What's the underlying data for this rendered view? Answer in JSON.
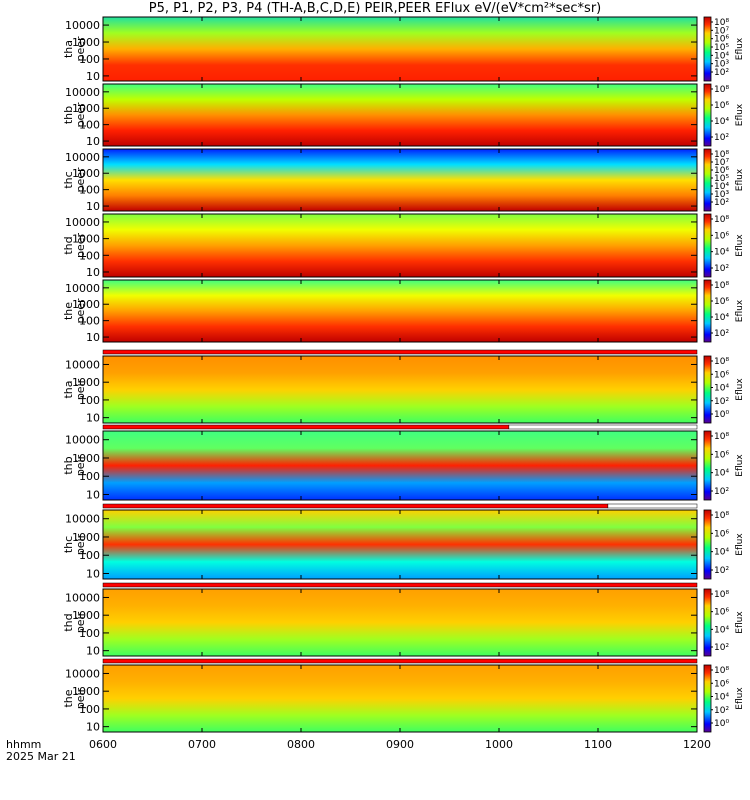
{
  "title": "P5, P1, P2, P3, P4 (TH-A,B,C,D,E) PEIR,PEER EFlux eV/(eV*cm²*sec*sr)",
  "time_axis": {
    "label": "hhmm",
    "date": "2025 Mar 21"
  },
  "colors": {
    "axis": "#000000",
    "status_red": "#ff0000",
    "status_white": "#ffffff"
  },
  "chart_data": {
    "type": "heatmap",
    "x_range_hhmm": [
      "0600",
      "1200"
    ],
    "x_range_hours": [
      6,
      12
    ],
    "x_ticks": [
      {
        "label": "0600",
        "hour": 6
      },
      {
        "label": "0700",
        "hour": 7
      },
      {
        "label": "0800",
        "hour": 8
      },
      {
        "label": "0900",
        "hour": 9
      },
      {
        "label": "1000",
        "hour": 10
      },
      {
        "label": "1100",
        "hour": 11
      },
      {
        "label": "1200",
        "hour": 12
      }
    ],
    "y_scale": "log",
    "y_range": [
      5,
      30000
    ],
    "colorbar_label": "Eflux",
    "panels": [
      {
        "probe": "tha",
        "species": "peer",
        "y_ticks": [
          "10000",
          "1000",
          "100",
          "10"
        ],
        "colorbar_ticks": [
          "10⁸",
          "10⁷",
          "10⁶",
          "10⁵",
          "10⁴",
          "10³",
          "10²"
        ]
      },
      {
        "probe": "thb",
        "species": "peer",
        "y_ticks": [
          "10000",
          "1000",
          "100",
          "10"
        ],
        "colorbar_ticks": [
          "10⁸",
          "10⁶",
          "10⁴",
          "10²"
        ]
      },
      {
        "probe": "thc",
        "species": "peer",
        "y_ticks": [
          "10000",
          "1000",
          "100",
          "10"
        ],
        "colorbar_ticks": [
          "10⁸",
          "10⁷",
          "10⁶",
          "10⁵",
          "10⁴",
          "10³",
          "10²"
        ]
      },
      {
        "probe": "thd",
        "species": "peer",
        "y_ticks": [
          "10000",
          "1000",
          "100",
          "10"
        ],
        "colorbar_ticks": [
          "10⁸",
          "10⁶",
          "10⁴",
          "10²"
        ]
      },
      {
        "probe": "the",
        "species": "peer",
        "y_ticks": [
          "10000",
          "1000",
          "100",
          "10"
        ],
        "colorbar_ticks": [
          "10⁸",
          "10⁶",
          "10⁴",
          "10²"
        ]
      },
      {
        "probe": "tha",
        "species": "peir",
        "y_ticks": [
          "10000",
          "1000",
          "100",
          "10"
        ],
        "colorbar_ticks": [
          "10⁸",
          "10⁶",
          "10⁴",
          "10²",
          "10⁰"
        ]
      },
      {
        "probe": "thb",
        "species": "peir",
        "y_ticks": [
          "10000",
          "1000",
          "100",
          "10"
        ],
        "colorbar_ticks": [
          "10⁸",
          "10⁶",
          "10⁴",
          "10²"
        ]
      },
      {
        "probe": "thc",
        "species": "peir",
        "y_ticks": [
          "10000",
          "1000",
          "100",
          "10"
        ],
        "colorbar_ticks": [
          "10⁸",
          "10⁶",
          "10⁴",
          "10²"
        ]
      },
      {
        "probe": "thd",
        "species": "peir",
        "y_ticks": [
          "10000",
          "1000",
          "100",
          "10"
        ],
        "colorbar_ticks": [
          "10⁸",
          "10⁶",
          "10⁴",
          "10²"
        ]
      },
      {
        "probe": "the",
        "species": "peir",
        "y_ticks": [
          "10000",
          "1000",
          "100",
          "10"
        ],
        "colorbar_ticks": [
          "10⁸",
          "10⁶",
          "10⁴",
          "10²",
          "10⁰"
        ]
      }
    ],
    "status_bars": [
      {
        "before_panel": 5,
        "segments": [
          {
            "from": 6,
            "to": 12,
            "color": "red"
          }
        ]
      },
      {
        "before_panel": 6,
        "segments": [
          {
            "from": 6,
            "to": 10.1,
            "color": "red"
          },
          {
            "from": 10.1,
            "to": 12,
            "color": "white"
          }
        ]
      },
      {
        "before_panel": 7,
        "segments": [
          {
            "from": 6,
            "to": 11.1,
            "color": "red"
          },
          {
            "from": 11.1,
            "to": 12,
            "color": "white"
          }
        ]
      },
      {
        "before_panel": 8,
        "segments": [
          {
            "from": 6,
            "to": 12,
            "color": "red"
          }
        ]
      },
      {
        "before_panel": 9,
        "segments": [
          {
            "from": 6,
            "to": 12,
            "color": "red"
          }
        ]
      }
    ]
  }
}
